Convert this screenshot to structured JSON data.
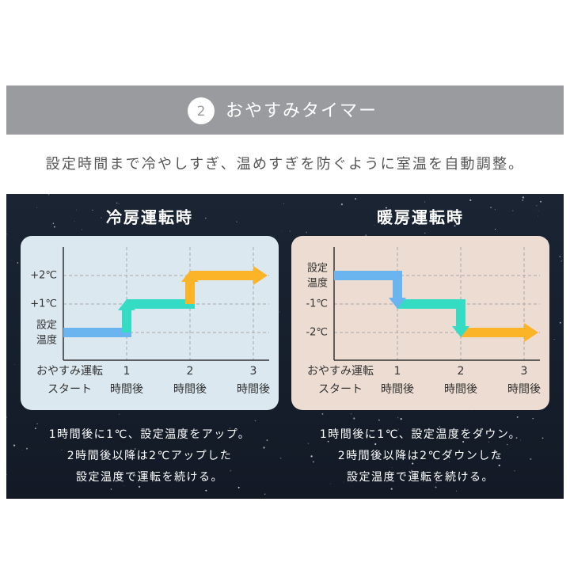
{
  "header": {
    "badge": "2",
    "title": "おやすみタイマー"
  },
  "subtitle": "設定時間まで冷やしすぎ、温めすぎを防ぐように室温を自動調整。",
  "panels": [
    {
      "title": "冷房運転時",
      "y_labels": [
        [
          "+2℃"
        ],
        [
          "+1℃"
        ],
        [
          "設定",
          "温度"
        ]
      ],
      "x_labels": [
        [
          "おやすみ運転",
          "スタート"
        ],
        [
          "1",
          "時間後"
        ],
        [
          "2",
          "時間後"
        ],
        [
          "3",
          "時間後"
        ]
      ],
      "caption": [
        "1時間後に1℃、設定温度をアップ。",
        "2時間後以降は2℃アップした",
        "設定温度で運転を続ける。"
      ]
    },
    {
      "title": "暖房運転時",
      "y_labels": [
        [
          "設定",
          "温度"
        ],
        [
          "-1℃"
        ],
        [
          "-2℃"
        ]
      ],
      "x_labels": [
        [
          "おやすみ運転",
          "スタート"
        ],
        [
          "1",
          "時間後"
        ],
        [
          "2",
          "時間後"
        ],
        [
          "3",
          "時間後"
        ]
      ],
      "caption": [
        "1時間後に1℃、設定温度をダウン。",
        "2時間後以降は2℃ダウンした",
        "設定温度で運転を続ける。"
      ]
    }
  ]
}
